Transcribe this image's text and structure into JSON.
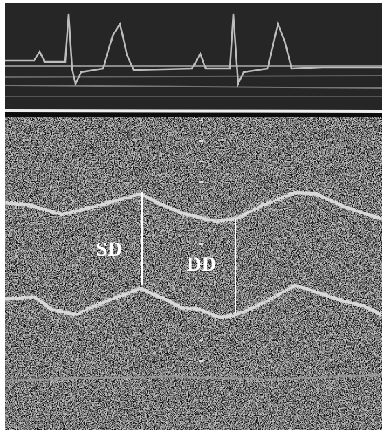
{
  "annotations": [
    {
      "label": "SD"
    },
    {
      "label": "DD"
    }
  ]
}
